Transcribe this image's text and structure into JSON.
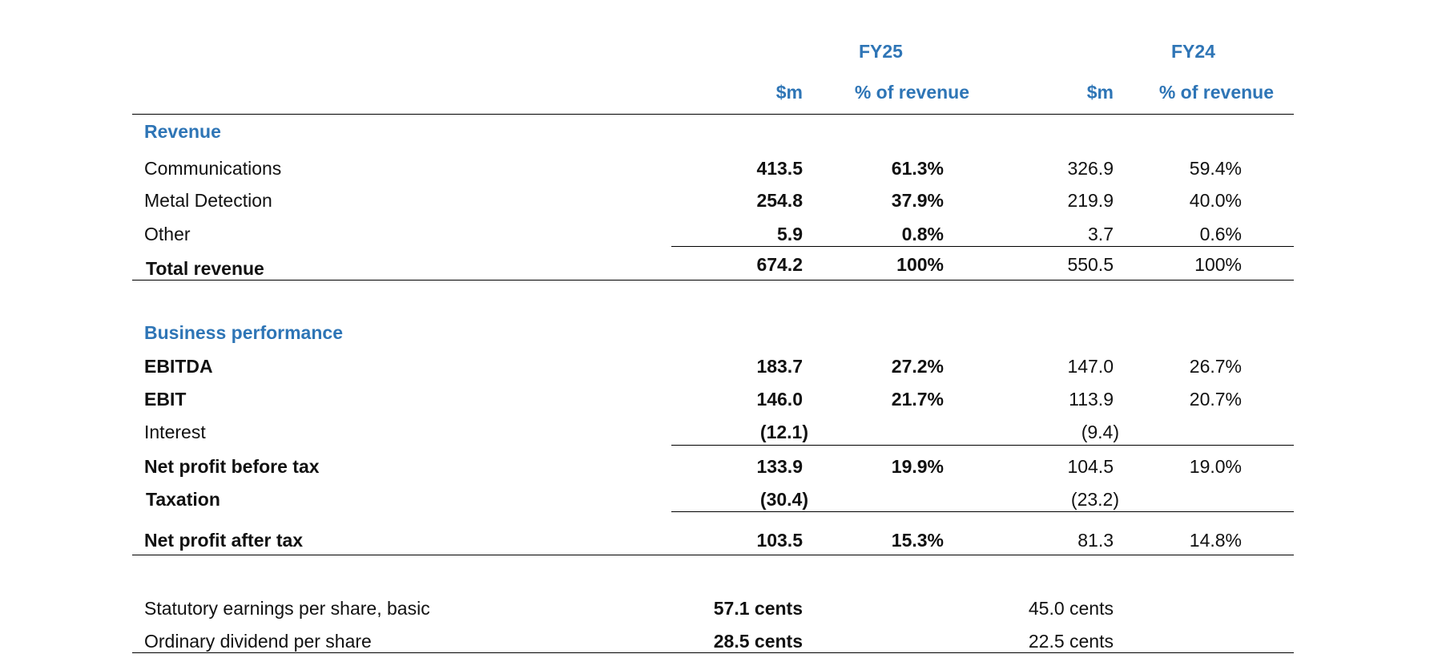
{
  "header": {
    "fy25": "FY25",
    "fy24": "FY24",
    "fy25_col1": "$m",
    "fy25_col2": "% of revenue",
    "fy24_col1": "$m",
    "fy24_col2": "% of revenue"
  },
  "revenue": {
    "heading": "Revenue",
    "rows": [
      {
        "label": "Communications",
        "fy25_m": "413.5",
        "fy25_pct": "61.3%",
        "fy24_m": "326.9",
        "fy24_pct": "59.4%"
      },
      {
        "label": "Metal Detection",
        "fy25_m": "254.8",
        "fy25_pct": "37.9%",
        "fy24_m": "219.9",
        "fy24_pct": "40.0%"
      },
      {
        "label": "Other",
        "fy25_m": "5.9",
        "fy25_pct": "0.8%",
        "fy24_m": "3.7",
        "fy24_pct": "0.6%"
      }
    ],
    "total": {
      "label": "Total revenue",
      "fy25_m": "674.2",
      "fy25_pct": "100%",
      "fy24_m": "550.5",
      "fy24_pct": "100%"
    }
  },
  "performance": {
    "heading": "Business performance",
    "ebitda": {
      "label": "EBITDA",
      "fy25_m": "183.7",
      "fy25_pct": "27.2%",
      "fy24_m": "147.0",
      "fy24_pct": "26.7%"
    },
    "ebit": {
      "label": "EBIT",
      "fy25_m": "146.0",
      "fy25_pct": "21.7%",
      "fy24_m": "113.9",
      "fy24_pct": "20.7%"
    },
    "interest": {
      "label": "Interest",
      "fy25_m": "(12.1)",
      "fy24_m": "(9.4)"
    },
    "npbt": {
      "label": "Net profit before tax",
      "fy25_m": "133.9",
      "fy25_pct": "19.9%",
      "fy24_m": "104.5",
      "fy24_pct": "19.0%"
    },
    "tax": {
      "label": "Taxation",
      "fy25_m": "(30.4)",
      "fy24_m": "(23.2)"
    },
    "npat": {
      "label": "Net profit after tax",
      "fy25_m": "103.5",
      "fy25_pct": "15.3%",
      "fy24_m": "81.3",
      "fy24_pct": "14.8%"
    }
  },
  "per_share": {
    "eps": {
      "label": "Statutory earnings per share, basic",
      "fy25": "57.1 cents",
      "fy24": "45.0 cents"
    },
    "dps": {
      "label": "Ordinary dividend per share",
      "fy25": "28.5 cents",
      "fy24": "22.5 cents"
    }
  },
  "colors": {
    "accent": "#2e75b6",
    "text": "#111111",
    "rule": "#000000"
  }
}
